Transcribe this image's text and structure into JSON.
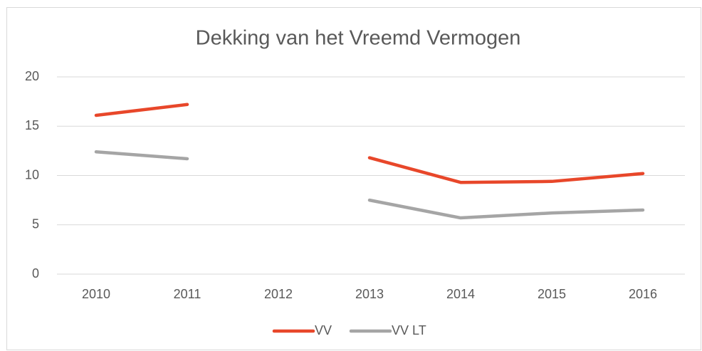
{
  "chart_data": {
    "type": "line",
    "title": "Dekking van het Vreemd Vermogen",
    "categories": [
      "2010",
      "2011",
      "2012",
      "2013",
      "2014",
      "2015",
      "2016"
    ],
    "series": [
      {
        "name": "VV",
        "color": "#e8472a",
        "values": [
          16.1,
          17.2,
          null,
          11.8,
          9.3,
          9.4,
          10.2
        ]
      },
      {
        "name": "VV LT",
        "color": "#a5a5a5",
        "values": [
          12.4,
          11.7,
          null,
          7.5,
          5.7,
          6.2,
          6.5
        ]
      }
    ],
    "ylim": [
      0,
      20
    ],
    "yticks": [
      0,
      5,
      10,
      15,
      20
    ],
    "grid": true,
    "legend": "bottom"
  }
}
